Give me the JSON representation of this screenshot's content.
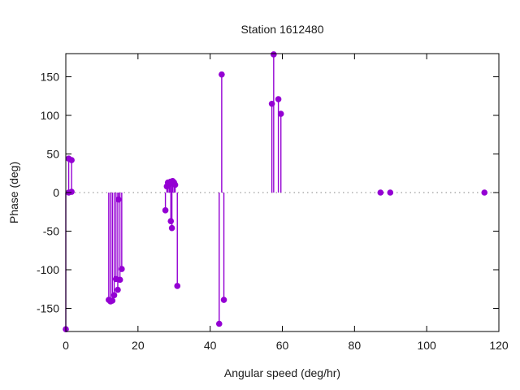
{
  "chart_data": {
    "type": "stem",
    "title": "Station 1612480",
    "xlabel": "Angular speed (deg/hr)",
    "ylabel": "Phase (deg)",
    "xlim": [
      0,
      120
    ],
    "ylim": [
      -180,
      180
    ],
    "xticks": [
      0,
      20,
      40,
      60,
      80,
      100,
      120
    ],
    "yticks": [
      -150,
      -100,
      -50,
      0,
      50,
      100,
      150
    ],
    "grid": false,
    "zero_line": true,
    "legend_position": "none",
    "series": [
      {
        "name": "phase",
        "color": "#9400d3",
        "points": [
          [
            0.0,
            -177
          ],
          [
            0.8,
            0
          ],
          [
            0.8,
            44
          ],
          [
            1.6,
            1
          ],
          [
            1.6,
            42
          ],
          [
            11.9,
            -139
          ],
          [
            12.4,
            -141
          ],
          [
            12.9,
            -140
          ],
          [
            13.4,
            -133
          ],
          [
            13.9,
            -112
          ],
          [
            14.4,
            -126
          ],
          [
            14.6,
            -9
          ],
          [
            15.0,
            -113
          ],
          [
            15.5,
            -99
          ],
          [
            27.6,
            -23
          ],
          [
            28.0,
            8
          ],
          [
            28.3,
            13
          ],
          [
            28.7,
            11
          ],
          [
            29.0,
            14
          ],
          [
            29.1,
            -37
          ],
          [
            29.3,
            12
          ],
          [
            29.4,
            -46
          ],
          [
            29.6,
            15
          ],
          [
            30.0,
            13
          ],
          [
            30.3,
            10
          ],
          [
            30.9,
            -121
          ],
          [
            42.5,
            -170
          ],
          [
            43.2,
            153
          ],
          [
            43.8,
            -139
          ],
          [
            57.1,
            115
          ],
          [
            57.6,
            179
          ],
          [
            58.9,
            121
          ],
          [
            59.6,
            102
          ],
          [
            87.2,
            0
          ],
          [
            89.9,
            0
          ],
          [
            116.0,
            0
          ]
        ]
      }
    ]
  },
  "colors": {
    "accent": "#9400d3",
    "zero_line": "#9e9e9e",
    "axis": "#000000",
    "text": "#1a1a1a",
    "background": "#ffffff"
  }
}
